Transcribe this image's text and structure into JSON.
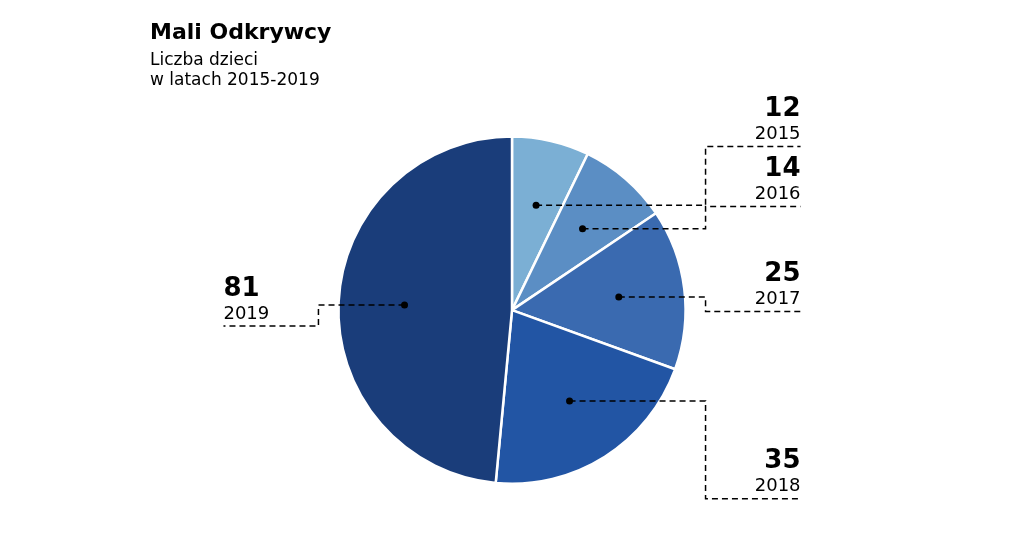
{
  "chart_data": {
    "type": "pie",
    "title": "Mali Odkrywcy",
    "subtitle": "Liczba dzieci\nw latach 2015-2019",
    "categories": [
      "2015",
      "2016",
      "2017",
      "2018",
      "2019"
    ],
    "values": [
      12,
      14,
      25,
      35,
      81
    ],
    "colors": [
      "#7bafd4",
      "#5b8ec4",
      "#3a6ab0",
      "#2255a4",
      "#1a3d7a"
    ],
    "data_labels": true
  }
}
